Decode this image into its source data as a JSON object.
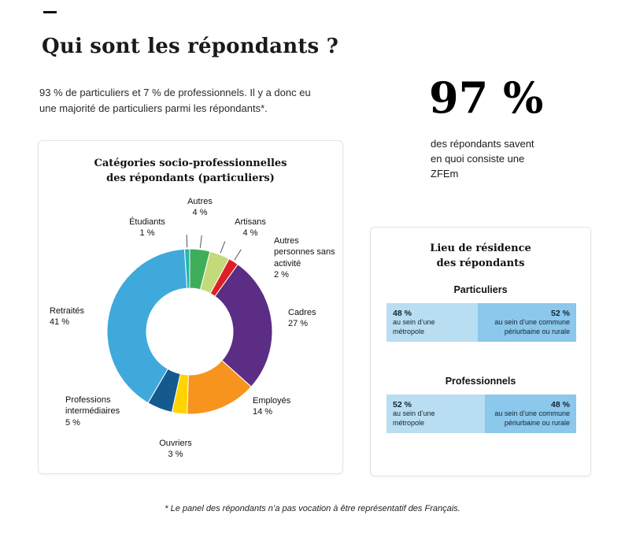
{
  "page": {
    "title": "Qui sont les répondants ?",
    "intro": "93 % de particuliers et 7 % de professionnels. Il y a donc eu\nune majorité de particuliers parmi les répondants*.",
    "footnote": "* Le panel des répondants n’a pas vocation à être représentatif des Français."
  },
  "stat": {
    "value": "97 %",
    "caption": "des répondants savent\nen quoi consiste une\nZFEm"
  },
  "chart_data": [
    {
      "type": "pie",
      "variant": "donut",
      "title": "Catégories socio-professionnelles\ndes répondants (particuliers)",
      "unit": "%",
      "segments": [
        {
          "label": "Autres",
          "value": 4,
          "pct_label": "4 %",
          "color": "#3eae5a",
          "leader": true
        },
        {
          "label": "Artisans",
          "value": 4,
          "pct_label": "4 %",
          "color": "#c4d97a",
          "leader": true
        },
        {
          "label": "Autres personnes sans activité",
          "value": 2,
          "pct_label": "2 %",
          "color": "#de1f26",
          "leader": true
        },
        {
          "label": "Cadres",
          "value": 27,
          "pct_label": "27 %",
          "color": "#5b2d84"
        },
        {
          "label": "Employés",
          "value": 14,
          "pct_label": "14 %",
          "color": "#f7941e"
        },
        {
          "label": "Ouvriers",
          "value": 3,
          "pct_label": "3 %",
          "color": "#ffd400"
        },
        {
          "label": "Professions intermédiaires",
          "value": 5,
          "pct_label": "5 %",
          "color": "#155a8e"
        },
        {
          "label": "Retraités",
          "value": 41,
          "pct_label": "41 %",
          "color": "#3fa9dc"
        },
        {
          "label": "Étudiants",
          "value": 1,
          "pct_label": "1 %",
          "color": "#2ab5ab",
          "leader": true
        }
      ]
    },
    {
      "type": "bar",
      "variant": "stacked-horizontal",
      "title": "Lieu de résidence\ndes répondants",
      "unit": "%",
      "groups": [
        {
          "label": "Particuliers",
          "segments": [
            {
              "value": 48,
              "pct_label": "48 %",
              "text": "au sein d’une\nmétropole",
              "color": "#b9ddf1"
            },
            {
              "value": 52,
              "pct_label": "52 %",
              "text": "au sein d’une commune\npériurbaine ou rurale",
              "color": "#8cc7ec"
            }
          ]
        },
        {
          "label": "Professionnels",
          "segments": [
            {
              "value": 52,
              "pct_label": "52 %",
              "text": "au sein d’une\nmétropole",
              "color": "#b9ddf1"
            },
            {
              "value": 48,
              "pct_label": "48 %",
              "text": "au sein d’une commune\npériurbaine ou rurale",
              "color": "#8cc7ec"
            }
          ]
        }
      ]
    }
  ]
}
